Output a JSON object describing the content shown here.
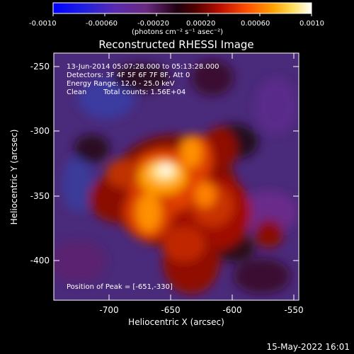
{
  "colorbar": {
    "ticks": [
      "-0.0010",
      "-0.00060",
      "-0.00020",
      "0.00020",
      "0.00060",
      "0.0010"
    ],
    "unit_label": "(photons cm⁻² s⁻¹ asec⁻²)"
  },
  "plot": {
    "title": "Reconstructed RHESSI Image",
    "xlabel": "Heliocentric X (arcsec)",
    "ylabel": "Heliocentric Y (arcsec)",
    "xticks": [
      "-700",
      "-650",
      "-600",
      "-550"
    ],
    "yticks": [
      "-250",
      "-300",
      "-350",
      "-400"
    ],
    "annotations": {
      "time": "13-Jun-2014 05:07:28.000 to 05:13:28.000",
      "detectors": "Detectors: 3F 4F 5F 6F 7F 8F, Att 0",
      "energy": "Energy Range: 12.0 - 25.0 keV",
      "method": "Clean",
      "counts": "Total counts: 1.56E+04",
      "peak": "Position of Peak = [-651,-330]"
    }
  },
  "footer": {
    "timestamp": "15-May-2022 16:01"
  },
  "colors": {
    "background": "#000000",
    "text": "#ffffff"
  }
}
